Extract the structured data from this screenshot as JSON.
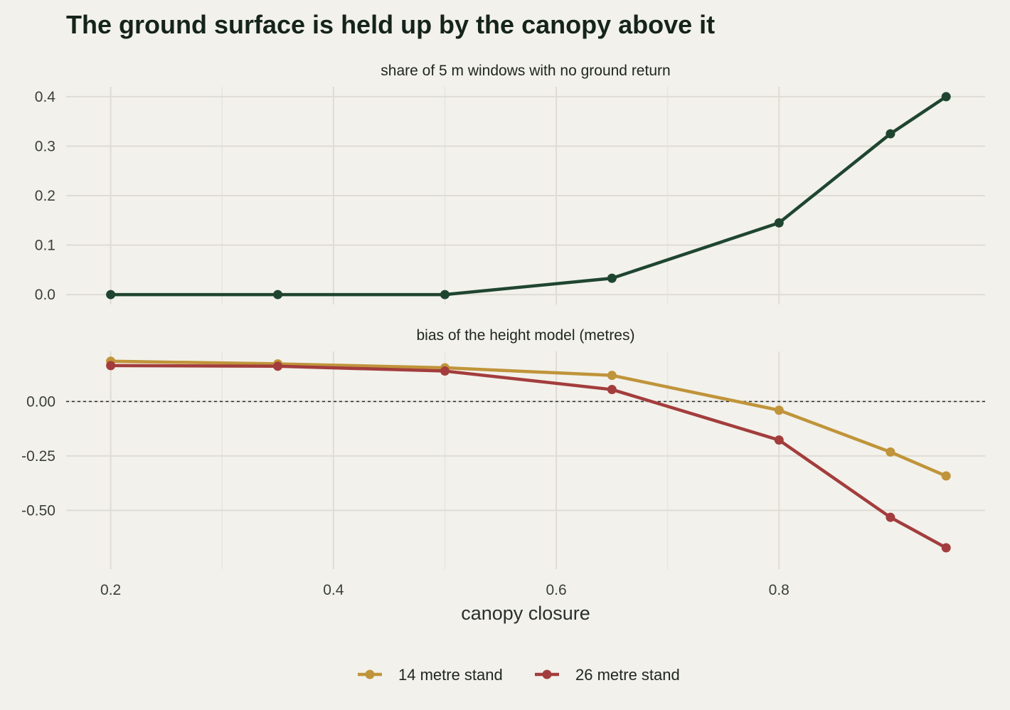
{
  "chart_data": {
    "title": "The ground surface is held up by the canopy above it",
    "xlabel": "canopy closure",
    "x_ticks": [
      "0.2",
      "0.4",
      "0.6",
      "0.8"
    ],
    "x_values": [
      0.2,
      0.35,
      0.5,
      0.65,
      0.8,
      0.9,
      0.95
    ],
    "xlim": [
      0.16,
      0.985
    ],
    "panels": [
      {
        "type": "line",
        "subtitle": "share of 5 m windows with no ground return",
        "ylim": [
          -0.02,
          0.42
        ],
        "y_ticks": [
          "0.0",
          "0.1",
          "0.2",
          "0.3",
          "0.4"
        ],
        "y_tick_values": [
          0.0,
          0.1,
          0.2,
          0.3,
          0.4
        ],
        "series": [
          {
            "color": "#1f4530",
            "values": [
              0.0,
              0.0,
              0.0,
              0.033,
              0.145,
              0.325,
              0.4
            ]
          }
        ]
      },
      {
        "type": "line",
        "subtitle": "bias of the height model (metres)",
        "ylim": [
          -0.77,
          0.23
        ],
        "y_ticks": [
          "0.00",
          "-0.25",
          "-0.50"
        ],
        "y_tick_values": [
          0.0,
          -0.25,
          -0.5
        ],
        "reference_line": 0.0,
        "series": [
          {
            "name": "14 metre stand",
            "color": "#c0943a",
            "values": [
              0.185,
              0.173,
              0.155,
              0.12,
              -0.04,
              -0.232,
              -0.342
            ]
          },
          {
            "name": "26 metre stand",
            "color": "#a33d3d",
            "values": [
              0.165,
              0.162,
              0.14,
              0.055,
              -0.177,
              -0.532,
              -0.672
            ]
          }
        ]
      }
    ],
    "legend": {
      "position": "bottom",
      "items": [
        {
          "label": "14 metre stand",
          "color": "#c0943a"
        },
        {
          "label": "26 metre stand",
          "color": "#a33d3d"
        }
      ]
    },
    "grid": true
  }
}
